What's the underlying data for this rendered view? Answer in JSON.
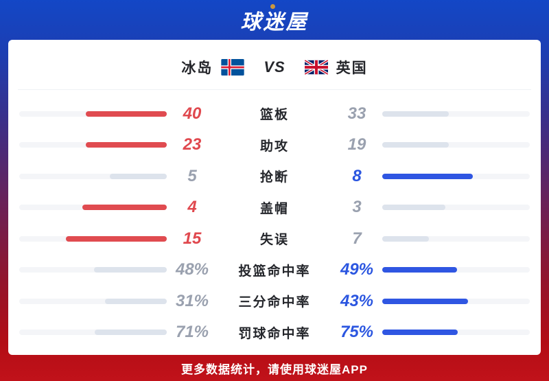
{
  "header": {
    "logo_text": "球迷屋"
  },
  "match": {
    "left_team": "冰岛",
    "right_team": "英国",
    "vs_label": "VS"
  },
  "colors": {
    "left_win_fill": "#e04b50",
    "right_win_fill": "#2f56e2",
    "lose_fill": "#dde3ec",
    "track": "#f4f5f8",
    "left_win_text": "#e0484e",
    "right_win_text": "#2b56e0",
    "lose_text": "#9aa1af",
    "top_band": "#1444c2",
    "bottom_band": "#bd0f16"
  },
  "chart_data": {
    "type": "bar",
    "orientation": "horizontal-paired",
    "left_team": "冰岛",
    "right_team": "英国",
    "categories": [
      "篮板",
      "助攻",
      "抢断",
      "盖帽",
      "失误",
      "投篮命中率",
      "三分命中率",
      "罚球命中率"
    ],
    "series": [
      {
        "name": "冰岛",
        "values": [
          40,
          23,
          5,
          4,
          15,
          48,
          31,
          71
        ],
        "display": [
          "40",
          "23",
          "5",
          "4",
          "15",
          "48%",
          "31%",
          "71%"
        ]
      },
      {
        "name": "英国",
        "values": [
          33,
          19,
          8,
          3,
          7,
          49,
          43,
          75
        ],
        "display": [
          "33",
          "19",
          "8",
          "3",
          "7",
          "49%",
          "43%",
          "75%"
        ]
      }
    ],
    "bar_rule": "fill length = value / (left value + right value) of track width, higher value highlighted"
  },
  "footer": {
    "text": "更多数据统计，请使用球迷屋APP"
  }
}
